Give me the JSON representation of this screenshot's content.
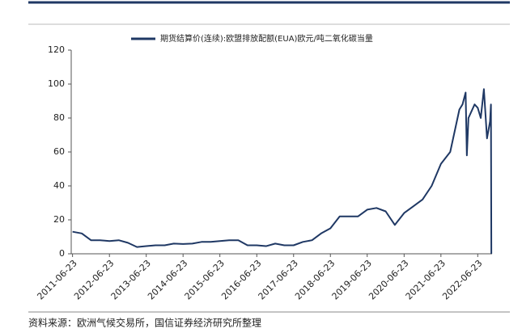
{
  "chart_data": {
    "type": "line",
    "legend_label": "期货结算价(连续):欧盟排放配额(EUA)欧元/吨二氧化碳当量",
    "legend": "top",
    "source": "资料来源：欧洲气候交易所，国信证券经济研究所整理",
    "x": [
      "2011-06-23",
      "2011-09-23",
      "2011-12-23",
      "2012-03-23",
      "2012-06-23",
      "2012-09-23",
      "2012-12-23",
      "2013-03-23",
      "2013-06-23",
      "2013-09-23",
      "2013-12-23",
      "2014-03-23",
      "2014-06-23",
      "2014-09-23",
      "2014-12-23",
      "2015-03-23",
      "2015-06-23",
      "2015-09-23",
      "2015-12-23",
      "2016-03-23",
      "2016-06-23",
      "2016-09-23",
      "2016-12-23",
      "2017-03-23",
      "2017-06-23",
      "2017-09-23",
      "2017-12-23",
      "2018-03-23",
      "2018-06-23",
      "2018-09-23",
      "2018-12-23",
      "2019-03-23",
      "2019-06-23",
      "2019-09-23",
      "2019-12-23",
      "2020-03-23",
      "2020-06-23",
      "2020-09-23",
      "2020-12-23",
      "2021-03-23",
      "2021-06-23",
      "2021-09-23",
      "2021-12-23",
      "2022-01-23",
      "2022-02-23",
      "2022-03-07",
      "2022-03-23",
      "2022-05-23",
      "2022-06-23",
      "2022-07-23",
      "2022-08-23",
      "2022-09-23",
      "2022-10-23",
      "2022-11-01",
      "2022-11-05"
    ],
    "series": [
      {
        "name": "期货结算价(连续):欧盟排放配额(EUA)欧元/吨二氧化碳当量",
        "color": "#1f3864",
        "values": [
          13,
          12,
          8,
          8,
          7.5,
          8,
          6.5,
          4,
          4.5,
          5,
          5,
          6,
          5.8,
          6,
          7,
          7,
          7.5,
          8,
          8,
          5,
          5,
          4.5,
          6,
          5,
          5,
          7,
          8,
          12,
          15,
          22,
          22,
          22,
          26,
          27,
          25,
          17,
          24,
          28,
          32,
          40,
          53,
          60,
          85,
          88,
          95,
          58,
          80,
          88,
          86,
          80,
          97,
          68,
          78,
          88,
          0
        ]
      }
    ],
    "xlim": [
      "2011-06-10",
      "2022-11-12"
    ],
    "xticks": [
      "2011-06-23",
      "2012-06-23",
      "2013-06-23",
      "2014-06-23",
      "2015-06-23",
      "2016-06-23",
      "2017-06-23",
      "2018-06-23",
      "2019-06-23",
      "2020-06-23",
      "2021-06-23",
      "2022-06-23"
    ],
    "ylim": [
      0,
      120
    ],
    "yticks": [
      0,
      20,
      40,
      60,
      80,
      100,
      120
    ],
    "grid": false
  }
}
